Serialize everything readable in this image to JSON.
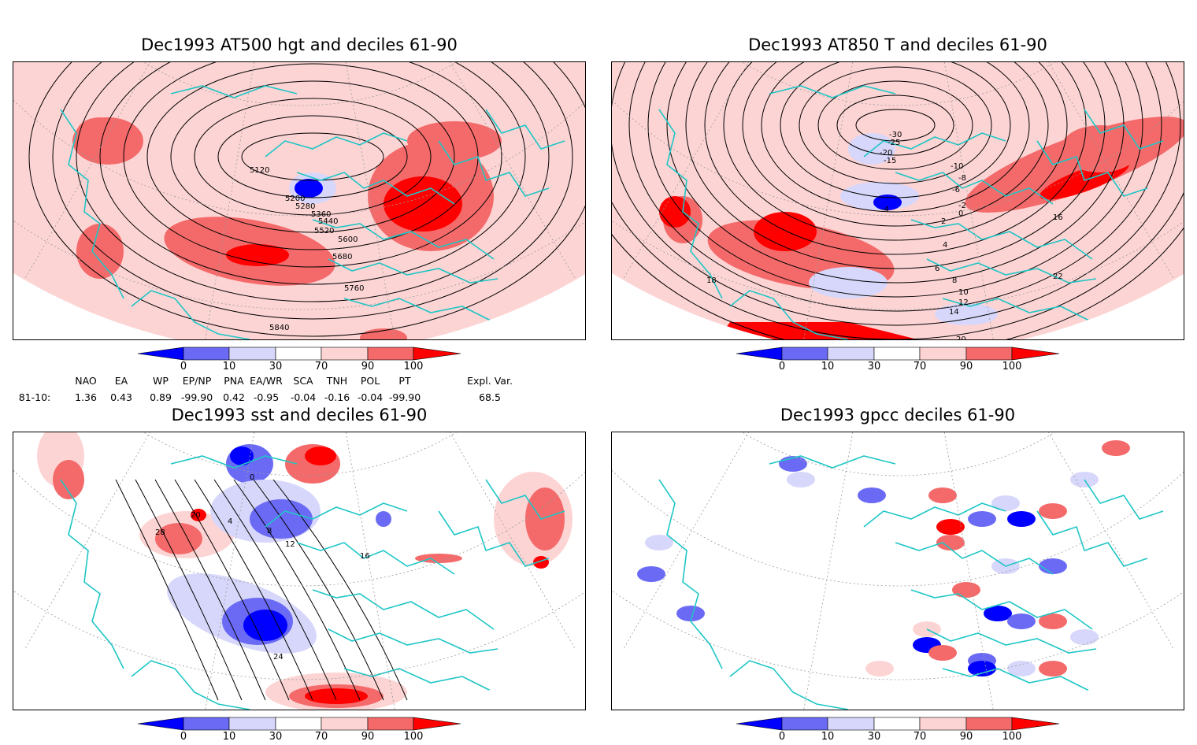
{
  "panels": [
    {
      "title": "Dec1993 AT500 hgt and deciles 61-90",
      "contour_labels": [
        "5120",
        "5200",
        "5280",
        "5360",
        "5440",
        "5520",
        "5600",
        "5680",
        "5760",
        "5840"
      ]
    },
    {
      "title": "Dec1993 AT850 T and deciles 61-90",
      "contour_labels": [
        "-30",
        "-25",
        "-20",
        "-15",
        "-10",
        "-8",
        "-6",
        "-4",
        "-2",
        "0",
        "2",
        "4",
        "6",
        "8",
        "10",
        "12",
        "14",
        "16",
        "18",
        "20",
        "22"
      ]
    },
    {
      "title": "Dec1993 sst and deciles 61-90",
      "contour_labels": [
        "0",
        "4",
        "8",
        "12",
        "16",
        "20",
        "24",
        "28"
      ]
    },
    {
      "title": "Dec1993 gpcc deciles 61-90",
      "contour_labels": []
    }
  ],
  "colorbar": {
    "labels": [
      "0",
      "10",
      "30",
      "70",
      "90",
      "100"
    ],
    "colors": [
      "#0000ff",
      "#6a6af5",
      "#d7d7fb",
      "#ffffff",
      "#fdd4d4",
      "#f46a6a",
      "#ff0000"
    ]
  },
  "indices": {
    "row_label": "81-10:",
    "headers": [
      "NAO",
      "EA",
      "WP",
      "EP/NP",
      "PNA",
      "EA/WR",
      "SCA",
      "TNH",
      "POL",
      "PT",
      "Expl. Var."
    ],
    "values": [
      "1.36",
      "0.43",
      "0.89",
      "-99.90",
      "0.42",
      "-0.95",
      "-0.04",
      "-0.16",
      "-0.04",
      "-99.90",
      "68.5"
    ]
  }
}
